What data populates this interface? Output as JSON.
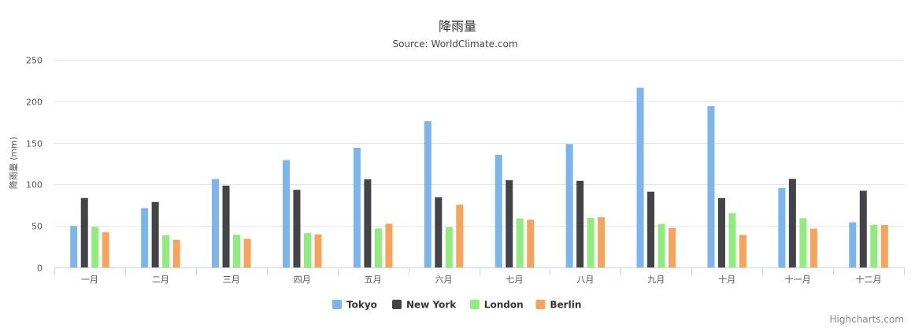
{
  "chart_data": {
    "type": "bar",
    "title": "降雨量",
    "subtitle": "Source: WorldClimate.com",
    "xlabel": "",
    "ylabel": "降雨量 (mm)",
    "ylim": [
      0,
      250
    ],
    "yticks": [
      0,
      50,
      100,
      150,
      200,
      250
    ],
    "grid": true,
    "legend_position": "bottom-center",
    "categories": [
      "一月",
      "二月",
      "三月",
      "四月",
      "五月",
      "六月",
      "七月",
      "八月",
      "九月",
      "十月",
      "十一月",
      "十二月"
    ],
    "series": [
      {
        "name": "Tokyo",
        "color": "#7cb5ec",
        "values": [
          49.9,
          71.5,
          106.4,
          129.2,
          144.0,
          176.0,
          135.6,
          148.5,
          216.4,
          194.1,
          95.6,
          54.4
        ]
      },
      {
        "name": "New York",
        "color": "#434348",
        "values": [
          83.6,
          78.8,
          98.5,
          93.4,
          106.0,
          84.5,
          105.0,
          104.3,
          91.2,
          83.5,
          106.6,
          92.3
        ]
      },
      {
        "name": "London",
        "color": "#90ed7d",
        "values": [
          48.9,
          38.8,
          39.3,
          41.4,
          47.0,
          48.3,
          59.0,
          59.6,
          52.4,
          65.2,
          59.3,
          51.2
        ]
      },
      {
        "name": "Berlin",
        "color": "#f7a35c",
        "values": [
          42.4,
          33.2,
          34.5,
          39.7,
          52.6,
          75.5,
          57.4,
          60.4,
          47.6,
          39.1,
          46.8,
          51.1
        ]
      }
    ],
    "credits": "Highcharts.com"
  }
}
